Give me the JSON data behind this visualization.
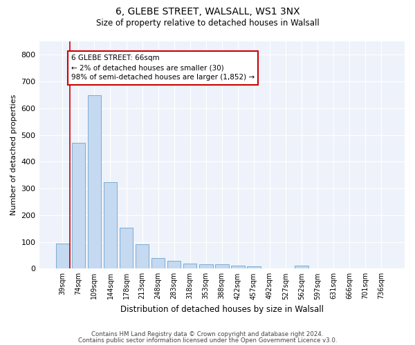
{
  "title1": "6, GLEBE STREET, WALSALL, WS1 3NX",
  "title2": "Size of property relative to detached houses in Walsall",
  "xlabel": "Distribution of detached houses by size in Walsall",
  "ylabel": "Number of detached properties",
  "categories": [
    "39sqm",
    "74sqm",
    "109sqm",
    "144sqm",
    "178sqm",
    "213sqm",
    "248sqm",
    "283sqm",
    "318sqm",
    "353sqm",
    "388sqm",
    "422sqm",
    "457sqm",
    "492sqm",
    "527sqm",
    "562sqm",
    "597sqm",
    "631sqm",
    "666sqm",
    "701sqm",
    "736sqm"
  ],
  "values": [
    95,
    470,
    648,
    323,
    153,
    90,
    40,
    28,
    20,
    16,
    15,
    10,
    8,
    0,
    0,
    10,
    0,
    0,
    0,
    0,
    0
  ],
  "bar_color": "#c5d9f0",
  "bar_edge_color": "#7aadd4",
  "vline_color": "#cc0000",
  "annotation_text": "6 GLEBE STREET: 66sqm\n← 2% of detached houses are smaller (30)\n98% of semi-detached houses are larger (1,852) →",
  "annotation_box_color": "#ffffff",
  "annotation_box_edge_color": "#cc0000",
  "ylim": [
    0,
    850
  ],
  "yticks": [
    0,
    100,
    200,
    300,
    400,
    500,
    600,
    700,
    800
  ],
  "footer1": "Contains HM Land Registry data © Crown copyright and database right 2024.",
  "footer2": "Contains public sector information licensed under the Open Government Licence v3.0.",
  "bg_color": "#ffffff",
  "plot_bg_color": "#eef2fa"
}
